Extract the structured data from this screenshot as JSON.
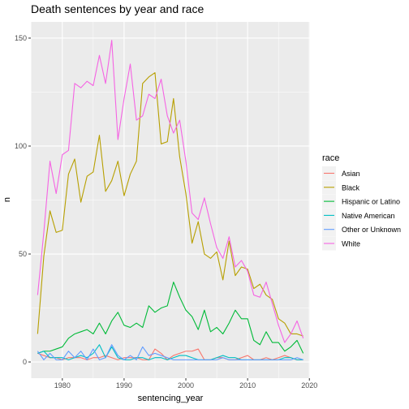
{
  "chart_data": {
    "type": "line",
    "title": "Death sentences by year and race",
    "xlabel": "sentencing_year",
    "ylabel": "n",
    "xlim": [
      1974.9,
      2020.1
    ],
    "ylim": [
      -7.5,
      157.5
    ],
    "x_ticks": [
      1980,
      1990,
      2000,
      2010,
      2020
    ],
    "y_ticks": [
      0,
      50,
      100,
      150
    ],
    "grid": true,
    "legend": {
      "title": "race",
      "position": "right"
    },
    "series": [
      {
        "name": "Asian",
        "color": "#F8766D",
        "x": [
          1976,
          1977,
          1978,
          1979,
          1980,
          1981,
          1982,
          1983,
          1984,
          1985,
          1986,
          1987,
          1988,
          1989,
          1990,
          1991,
          1992,
          1993,
          1994,
          1995,
          1996,
          1997,
          1998,
          1999,
          2000,
          2001,
          2002,
          2003,
          2004,
          2005,
          2006,
          2007,
          2008,
          2009,
          2010,
          2011,
          2012,
          2013,
          2014,
          2015,
          2016,
          2017,
          2018,
          2019
        ],
        "y": [
          4,
          3,
          2,
          2,
          1,
          2,
          2,
          2,
          1,
          2,
          2,
          3,
          2,
          1,
          2,
          2,
          2,
          1,
          1,
          6,
          4,
          1,
          3,
          4,
          5,
          5,
          6,
          1,
          1,
          2,
          2,
          1,
          1,
          2,
          3,
          1,
          1,
          2,
          1,
          2,
          3,
          2,
          1,
          1
        ]
      },
      {
        "name": "Black",
        "color": "#B79F00",
        "x": [
          1976,
          1977,
          1978,
          1979,
          1980,
          1981,
          1982,
          1983,
          1984,
          1985,
          1986,
          1987,
          1988,
          1989,
          1990,
          1991,
          1992,
          1993,
          1994,
          1995,
          1996,
          1997,
          1998,
          1999,
          2000,
          2001,
          2002,
          2003,
          2004,
          2005,
          2006,
          2007,
          2008,
          2009,
          2010,
          2011,
          2012,
          2013,
          2014,
          2015,
          2016,
          2017,
          2018,
          2019
        ],
        "y": [
          13,
          49,
          70,
          60,
          61,
          87,
          94,
          74,
          86,
          88,
          105,
          79,
          84,
          93,
          77,
          87,
          93,
          129,
          132,
          134,
          101,
          102,
          122,
          95,
          78,
          55,
          65,
          50,
          48,
          51,
          38,
          56,
          40,
          44,
          43,
          34,
          36,
          31,
          29,
          20,
          18,
          13,
          13,
          12
        ]
      },
      {
        "name": "Hispanic or Latino",
        "color": "#00BA38",
        "x": [
          1976,
          1977,
          1978,
          1979,
          1980,
          1981,
          1982,
          1983,
          1984,
          1985,
          1986,
          1987,
          1988,
          1989,
          1990,
          1991,
          1992,
          1993,
          1994,
          1995,
          1996,
          1997,
          1998,
          1999,
          2000,
          2001,
          2002,
          2003,
          2004,
          2005,
          2006,
          2007,
          2008,
          2009,
          2010,
          2011,
          2012,
          2013,
          2014,
          2015,
          2016,
          2017,
          2018,
          2019
        ],
        "y": [
          4,
          5,
          5,
          6,
          7,
          11,
          13,
          14,
          15,
          13,
          18,
          13,
          19,
          23,
          17,
          16,
          18,
          16,
          26,
          23,
          25,
          26,
          37,
          30,
          24,
          21,
          15,
          24,
          14,
          16,
          13,
          18,
          24,
          20,
          20,
          10,
          8,
          14,
          9,
          9,
          5,
          7,
          10,
          4
        ]
      },
      {
        "name": "Native American",
        "color": "#00BFC4",
        "x": [
          1976,
          1977,
          1978,
          1979,
          1980,
          1981,
          1982,
          1983,
          1984,
          1985,
          1986,
          1987,
          1988,
          1989,
          1990,
          1991,
          1992,
          1993,
          1994,
          1995,
          1996,
          1997,
          1998,
          1999,
          2000,
          2001,
          2002,
          2003,
          2004,
          2005,
          2006,
          2007,
          2008,
          2009,
          2010,
          2011,
          2012,
          2013,
          2014,
          2015,
          2016,
          2017,
          2018,
          2019
        ],
        "y": [
          4,
          5,
          2,
          2,
          2,
          1,
          2,
          3,
          2,
          4,
          8,
          2,
          7,
          2,
          1,
          1,
          2,
          2,
          1,
          2,
          2,
          1,
          2,
          3,
          3,
          2,
          1,
          1,
          1,
          2,
          3,
          2,
          2,
          1,
          1,
          1,
          1,
          1,
          1,
          1,
          2,
          2,
          1,
          1
        ]
      },
      {
        "name": "Other or Unknown",
        "color": "#619CFF",
        "x": [
          1976,
          1977,
          1978,
          1979,
          1980,
          1981,
          1982,
          1983,
          1984,
          1985,
          1986,
          1987,
          1988,
          1989,
          1990,
          1991,
          1992,
          1993,
          1994,
          1995,
          1996,
          1997,
          1998,
          1999,
          2000,
          2001,
          2002,
          2003,
          2004,
          2005,
          2006,
          2007,
          2008,
          2009,
          2010,
          2011,
          2012,
          2013,
          2014,
          2015,
          2016,
          2017,
          2018,
          2019
        ],
        "y": [
          5,
          1,
          4,
          1,
          1,
          5,
          2,
          5,
          1,
          6,
          1,
          2,
          8,
          3,
          1,
          3,
          1,
          7,
          3,
          4,
          3,
          2,
          1,
          1,
          1,
          1,
          1,
          1,
          1,
          1,
          2,
          1,
          1,
          1,
          1,
          1,
          1,
          1,
          1,
          1,
          1,
          1,
          2,
          1
        ]
      },
      {
        "name": "White",
        "color": "#F564E3",
        "x": [
          1976,
          1977,
          1978,
          1979,
          1980,
          1981,
          1982,
          1983,
          1984,
          1985,
          1986,
          1987,
          1988,
          1989,
          1990,
          1991,
          1992,
          1993,
          1994,
          1995,
          1996,
          1997,
          1998,
          1999,
          2000,
          2001,
          2002,
          2003,
          2004,
          2005,
          2006,
          2007,
          2008,
          2009,
          2010,
          2011,
          2012,
          2013,
          2014,
          2015,
          2016,
          2017,
          2018,
          2019
        ],
        "y": [
          31,
          60,
          93,
          78,
          96,
          98,
          129,
          127,
          130,
          128,
          142,
          129,
          149,
          103,
          122,
          138,
          112,
          114,
          124,
          122,
          131,
          114,
          106,
          112,
          93,
          69,
          66,
          76,
          64,
          53,
          48,
          58,
          44,
          47,
          42,
          31,
          30,
          37,
          27,
          17,
          9,
          13,
          19,
          11
        ]
      }
    ]
  }
}
